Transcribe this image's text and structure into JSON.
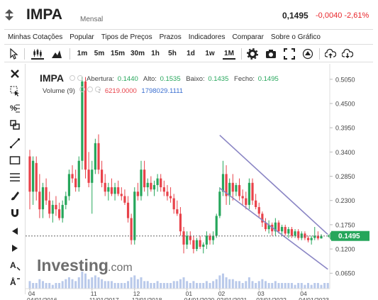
{
  "header": {
    "symbol": "IMPA",
    "subtitle": "Mensal",
    "price": "0,1495",
    "change": "-0,0040",
    "change_pct": "-2,61%"
  },
  "menu": [
    "Minhas Cotações",
    "Popular",
    "Tipos de Preços",
    "Prazos",
    "Indicadores",
    "Comparar",
    "Sobre o Gráfico"
  ],
  "toolbar": {
    "timeframes": [
      "1m",
      "5m",
      "15m",
      "30m",
      "1h",
      "5h",
      "1d",
      "1w",
      "1M"
    ],
    "active_timeframe": "1M"
  },
  "legend": {
    "symbol": "IMPA",
    "open_label": "Abertura:",
    "open": "0.1440",
    "high_label": "Alto:",
    "high": "0.1535",
    "low_label": "Baixo:",
    "low": "0.1435",
    "close_label": "Fecho:",
    "close": "0.1495",
    "volume_label": "Volume (9)",
    "volume_v1": "6219.0000",
    "volume_v2": "1798029.1111",
    "volume_sep": ":"
  },
  "watermark": {
    "brand": "Investing",
    "suffix": ".com"
  },
  "colors": {
    "up": "#26a65b",
    "down": "#e8424a",
    "channel": "#8a85c4",
    "price_label_bg": "#26a65b",
    "volume": "#b9c9ea"
  },
  "chart_data": {
    "type": "candlestick",
    "y_axis": {
      "ticks": [
        0.065,
        0.12,
        0.175,
        0.23,
        0.285,
        0.34,
        0.395,
        0.45,
        0.505
      ],
      "tick_labels": [
        "0.0650",
        "0.1200",
        "0.1750",
        "0.2300",
        "0.2850",
        "0.3400",
        "0.3950",
        "0.4500",
        "0.5050"
      ],
      "range": [
        0.03,
        0.54
      ]
    },
    "current_price": 0.1495,
    "current_price_label": "0.1495",
    "x_axis": {
      "ticks_top": [
        "04",
        "11",
        "12",
        "01",
        "02",
        "03",
        "04"
      ],
      "ticks_bottom": [
        "04/01/2016",
        "11/01/2017",
        "12/01/2018",
        "04/01/2020",
        "02/01/2021",
        "03/01/2022",
        "04/01/2023"
      ],
      "tick_index": [
        0,
        19,
        32,
        48,
        58,
        70,
        83
      ]
    },
    "channel": {
      "upper": {
        "from": {
          "index": 58,
          "value": 0.378
        },
        "to": {
          "index": 91,
          "value": 0.153
        }
      },
      "lower": {
        "from": {
          "index": 58,
          "value": 0.258
        },
        "to": {
          "index": 91,
          "value": 0.074
        }
      }
    },
    "candles": [
      {
        "o": 0.33,
        "h": 0.345,
        "l": 0.21,
        "c": 0.25
      },
      {
        "o": 0.25,
        "h": 0.33,
        "l": 0.22,
        "c": 0.32
      },
      {
        "o": 0.315,
        "h": 0.33,
        "l": 0.23,
        "c": 0.25
      },
      {
        "o": 0.25,
        "h": 0.29,
        "l": 0.19,
        "c": 0.21
      },
      {
        "o": 0.21,
        "h": 0.27,
        "l": 0.19,
        "c": 0.26
      },
      {
        "o": 0.26,
        "h": 0.28,
        "l": 0.22,
        "c": 0.23
      },
      {
        "o": 0.23,
        "h": 0.25,
        "l": 0.19,
        "c": 0.2
      },
      {
        "o": 0.2,
        "h": 0.23,
        "l": 0.18,
        "c": 0.22
      },
      {
        "o": 0.22,
        "h": 0.24,
        "l": 0.195,
        "c": 0.21
      },
      {
        "o": 0.21,
        "h": 0.225,
        "l": 0.185,
        "c": 0.19
      },
      {
        "o": 0.19,
        "h": 0.23,
        "l": 0.18,
        "c": 0.22
      },
      {
        "o": 0.22,
        "h": 0.25,
        "l": 0.21,
        "c": 0.24
      },
      {
        "o": 0.24,
        "h": 0.3,
        "l": 0.23,
        "c": 0.29
      },
      {
        "o": 0.29,
        "h": 0.31,
        "l": 0.27,
        "c": 0.28
      },
      {
        "o": 0.28,
        "h": 0.3,
        "l": 0.25,
        "c": 0.26
      },
      {
        "o": 0.26,
        "h": 0.33,
        "l": 0.25,
        "c": 0.32
      },
      {
        "o": 0.32,
        "h": 0.51,
        "l": 0.3,
        "c": 0.5
      },
      {
        "o": 0.5,
        "h": 0.51,
        "l": 0.28,
        "c": 0.3
      },
      {
        "o": 0.3,
        "h": 0.34,
        "l": 0.26,
        "c": 0.27
      },
      {
        "o": 0.27,
        "h": 0.32,
        "l": 0.2,
        "c": 0.3
      },
      {
        "o": 0.3,
        "h": 0.37,
        "l": 0.29,
        "c": 0.36
      },
      {
        "o": 0.36,
        "h": 0.38,
        "l": 0.29,
        "c": 0.3
      },
      {
        "o": 0.3,
        "h": 0.32,
        "l": 0.26,
        "c": 0.27
      },
      {
        "o": 0.27,
        "h": 0.29,
        "l": 0.24,
        "c": 0.25
      },
      {
        "o": 0.25,
        "h": 0.27,
        "l": 0.23,
        "c": 0.26
      },
      {
        "o": 0.26,
        "h": 0.28,
        "l": 0.24,
        "c": 0.245
      },
      {
        "o": 0.245,
        "h": 0.27,
        "l": 0.23,
        "c": 0.26
      },
      {
        "o": 0.26,
        "h": 0.275,
        "l": 0.24,
        "c": 0.245
      },
      {
        "o": 0.245,
        "h": 0.26,
        "l": 0.23,
        "c": 0.24
      },
      {
        "o": 0.24,
        "h": 0.255,
        "l": 0.22,
        "c": 0.225
      },
      {
        "o": 0.225,
        "h": 0.24,
        "l": 0.18,
        "c": 0.19
      },
      {
        "o": 0.19,
        "h": 0.2,
        "l": 0.13,
        "c": 0.14
      },
      {
        "o": 0.14,
        "h": 0.26,
        "l": 0.13,
        "c": 0.25
      },
      {
        "o": 0.25,
        "h": 0.27,
        "l": 0.23,
        "c": 0.24
      },
      {
        "o": 0.24,
        "h": 0.32,
        "l": 0.23,
        "c": 0.3
      },
      {
        "o": 0.3,
        "h": 0.32,
        "l": 0.25,
        "c": 0.26
      },
      {
        "o": 0.26,
        "h": 0.28,
        "l": 0.24,
        "c": 0.27
      },
      {
        "o": 0.27,
        "h": 0.285,
        "l": 0.25,
        "c": 0.255
      },
      {
        "o": 0.255,
        "h": 0.275,
        "l": 0.24,
        "c": 0.265
      },
      {
        "o": 0.265,
        "h": 0.29,
        "l": 0.25,
        "c": 0.28
      },
      {
        "o": 0.28,
        "h": 0.29,
        "l": 0.25,
        "c": 0.26
      },
      {
        "o": 0.26,
        "h": 0.275,
        "l": 0.24,
        "c": 0.25
      },
      {
        "o": 0.25,
        "h": 0.265,
        "l": 0.23,
        "c": 0.24
      },
      {
        "o": 0.24,
        "h": 0.26,
        "l": 0.225,
        "c": 0.235
      },
      {
        "o": 0.235,
        "h": 0.245,
        "l": 0.2,
        "c": 0.21
      },
      {
        "o": 0.21,
        "h": 0.23,
        "l": 0.195,
        "c": 0.2
      },
      {
        "o": 0.2,
        "h": 0.215,
        "l": 0.15,
        "c": 0.16
      },
      {
        "o": 0.16,
        "h": 0.17,
        "l": 0.11,
        "c": 0.13
      },
      {
        "o": 0.13,
        "h": 0.16,
        "l": 0.12,
        "c": 0.15
      },
      {
        "o": 0.15,
        "h": 0.16,
        "l": 0.13,
        "c": 0.14
      },
      {
        "o": 0.14,
        "h": 0.15,
        "l": 0.11,
        "c": 0.12
      },
      {
        "o": 0.12,
        "h": 0.145,
        "l": 0.115,
        "c": 0.14
      },
      {
        "o": 0.14,
        "h": 0.15,
        "l": 0.12,
        "c": 0.125
      },
      {
        "o": 0.125,
        "h": 0.135,
        "l": 0.11,
        "c": 0.13
      },
      {
        "o": 0.13,
        "h": 0.16,
        "l": 0.12,
        "c": 0.15
      },
      {
        "o": 0.15,
        "h": 0.155,
        "l": 0.13,
        "c": 0.14
      },
      {
        "o": 0.14,
        "h": 0.16,
        "l": 0.13,
        "c": 0.15
      },
      {
        "o": 0.15,
        "h": 0.2,
        "l": 0.145,
        "c": 0.195
      },
      {
        "o": 0.195,
        "h": 0.26,
        "l": 0.19,
        "c": 0.25
      },
      {
        "o": 0.25,
        "h": 0.32,
        "l": 0.24,
        "c": 0.29
      },
      {
        "o": 0.29,
        "h": 0.31,
        "l": 0.22,
        "c": 0.24
      },
      {
        "o": 0.24,
        "h": 0.28,
        "l": 0.22,
        "c": 0.27
      },
      {
        "o": 0.27,
        "h": 0.29,
        "l": 0.23,
        "c": 0.25
      },
      {
        "o": 0.25,
        "h": 0.27,
        "l": 0.24,
        "c": 0.265
      },
      {
        "o": 0.265,
        "h": 0.28,
        "l": 0.23,
        "c": 0.24
      },
      {
        "o": 0.24,
        "h": 0.255,
        "l": 0.22,
        "c": 0.235
      },
      {
        "o": 0.235,
        "h": 0.25,
        "l": 0.21,
        "c": 0.22
      },
      {
        "o": 0.22,
        "h": 0.28,
        "l": 0.21,
        "c": 0.27
      },
      {
        "o": 0.27,
        "h": 0.28,
        "l": 0.22,
        "c": 0.23
      },
      {
        "o": 0.23,
        "h": 0.245,
        "l": 0.21,
        "c": 0.215
      },
      {
        "o": 0.215,
        "h": 0.225,
        "l": 0.19,
        "c": 0.2
      },
      {
        "o": 0.2,
        "h": 0.205,
        "l": 0.17,
        "c": 0.18
      },
      {
        "o": 0.18,
        "h": 0.19,
        "l": 0.16,
        "c": 0.165
      },
      {
        "o": 0.165,
        "h": 0.185,
        "l": 0.155,
        "c": 0.175
      },
      {
        "o": 0.175,
        "h": 0.18,
        "l": 0.15,
        "c": 0.16
      },
      {
        "o": 0.16,
        "h": 0.19,
        "l": 0.15,
        "c": 0.18
      },
      {
        "o": 0.18,
        "h": 0.185,
        "l": 0.155,
        "c": 0.16
      },
      {
        "o": 0.16,
        "h": 0.175,
        "l": 0.15,
        "c": 0.17
      },
      {
        "o": 0.17,
        "h": 0.175,
        "l": 0.15,
        "c": 0.155
      },
      {
        "o": 0.155,
        "h": 0.17,
        "l": 0.145,
        "c": 0.165
      },
      {
        "o": 0.165,
        "h": 0.17,
        "l": 0.145,
        "c": 0.15
      },
      {
        "o": 0.15,
        "h": 0.165,
        "l": 0.145,
        "c": 0.16
      },
      {
        "o": 0.16,
        "h": 0.165,
        "l": 0.14,
        "c": 0.145
      },
      {
        "o": 0.145,
        "h": 0.16,
        "l": 0.14,
        "c": 0.155
      },
      {
        "o": 0.155,
        "h": 0.16,
        "l": 0.14,
        "c": 0.145
      },
      {
        "o": 0.145,
        "h": 0.15,
        "l": 0.135,
        "c": 0.14
      },
      {
        "o": 0.14,
        "h": 0.15,
        "l": 0.13,
        "c": 0.145
      },
      {
        "o": 0.145,
        "h": 0.17,
        "l": 0.14,
        "c": 0.15
      },
      {
        "o": 0.15,
        "h": 0.16,
        "l": 0.14,
        "c": 0.144
      },
      {
        "o": 0.144,
        "h": 0.1535,
        "l": 0.1435,
        "c": 0.1495
      }
    ],
    "volume": [
      4,
      3,
      3,
      5,
      4,
      3,
      3,
      2,
      3,
      3,
      4,
      5,
      6,
      5,
      4,
      6,
      9,
      8,
      5,
      6,
      7,
      6,
      5,
      4,
      4,
      4,
      3,
      3,
      3,
      3,
      4,
      6,
      7,
      5,
      6,
      4,
      4,
      3,
      3,
      4,
      3,
      3,
      3,
      3,
      4,
      4,
      5,
      6,
      4,
      3,
      4,
      3,
      3,
      3,
      4,
      3,
      4,
      5,
      7,
      8,
      6,
      5,
      5,
      4,
      4,
      3,
      4,
      6,
      4,
      3,
      4,
      5,
      4,
      3,
      3,
      4,
      3,
      3,
      3,
      3,
      3,
      2,
      3,
      3,
      2,
      3,
      2,
      3,
      3,
      2,
      3,
      3
    ]
  }
}
